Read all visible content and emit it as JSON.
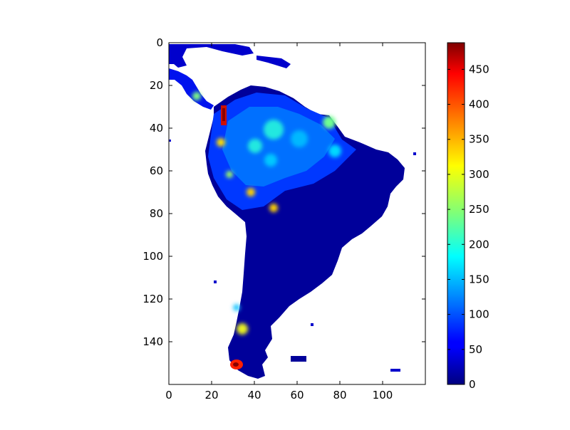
{
  "chart_data": {
    "type": "heatmap",
    "title": "",
    "xlabel": "",
    "ylabel": "",
    "x_ticks": [
      0,
      20,
      40,
      60,
      80,
      100
    ],
    "y_ticks": [
      0,
      20,
      40,
      60,
      80,
      100,
      120,
      140
    ],
    "xlim": [
      0,
      120
    ],
    "ylim": [
      160,
      0
    ],
    "y_inverted": true,
    "grid": false,
    "colormap": "jet",
    "colorbar": {
      "ticks": [
        0,
        50,
        100,
        150,
        200,
        250,
        300,
        350,
        400,
        450
      ],
      "min": 0,
      "max": 488,
      "position": "right"
    },
    "description_data_extent": "gridded values over South America; land cells roughly x 0-112, y 0-160",
    "hotspots": [
      {
        "x": 25,
        "y": 33,
        "value": 430
      },
      {
        "x": 24,
        "y": 36,
        "value": 380
      },
      {
        "x": 39,
        "y": 70,
        "value": 320
      },
      {
        "x": 49,
        "y": 77,
        "value": 300
      },
      {
        "x": 31,
        "y": 150,
        "value": 470
      },
      {
        "x": 34,
        "y": 133,
        "value": 300
      },
      {
        "x": 12,
        "y": 25,
        "value": 220
      },
      {
        "x": 75,
        "y": 40,
        "value": 230
      },
      {
        "x": 45,
        "y": 40,
        "value": 200
      },
      {
        "x": 60,
        "y": 45,
        "value": 170
      },
      {
        "x": 40,
        "y": 50,
        "value": 180
      }
    ]
  }
}
